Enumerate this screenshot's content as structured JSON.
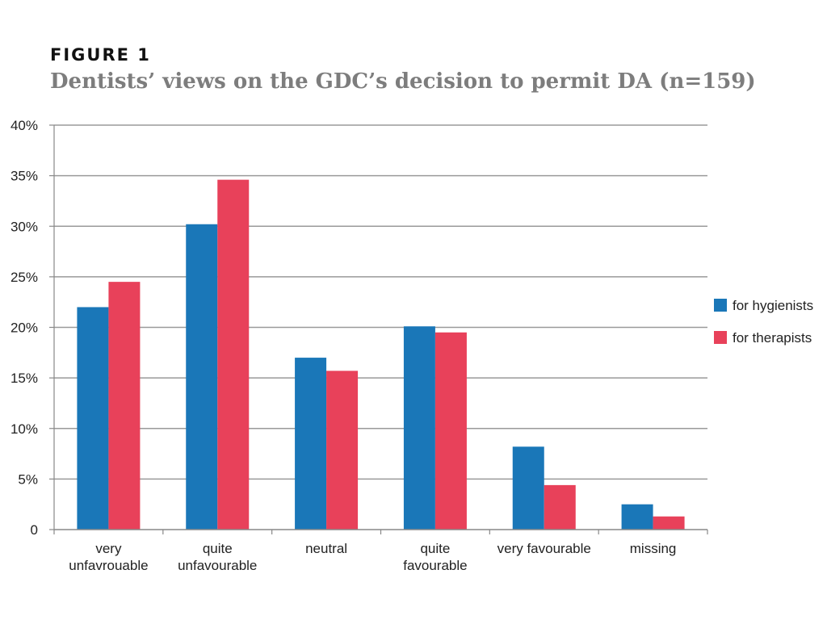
{
  "figure_label": "FIGURE 1",
  "chart_data": {
    "type": "bar",
    "title": "Dentists’ views on the GDC’s decision to permit DA (n=159)",
    "categories": [
      [
        "very",
        "unfavrouable"
      ],
      [
        "quite",
        "unfavourable"
      ],
      [
        "neutral"
      ],
      [
        "quite",
        "favourable"
      ],
      [
        "very favourable"
      ],
      [
        "missing"
      ]
    ],
    "series": [
      {
        "name": "for hygienists",
        "color": "#1a77b8",
        "values": [
          22.0,
          30.2,
          17.0,
          20.1,
          8.2,
          2.5
        ]
      },
      {
        "name": "for therapists",
        "color": "#e8415a",
        "values": [
          24.5,
          34.6,
          15.7,
          19.5,
          4.4,
          1.3
        ]
      }
    ],
    "y_ticks": [
      0,
      5,
      10,
      15,
      20,
      25,
      30,
      35,
      40
    ],
    "y_tick_labels": [
      "0",
      "5%",
      "10%",
      "15%",
      "20%",
      "25%",
      "30%",
      "35%",
      "40%"
    ],
    "ylim": [
      0,
      40
    ],
    "grid": true,
    "legend_position": "right"
  }
}
